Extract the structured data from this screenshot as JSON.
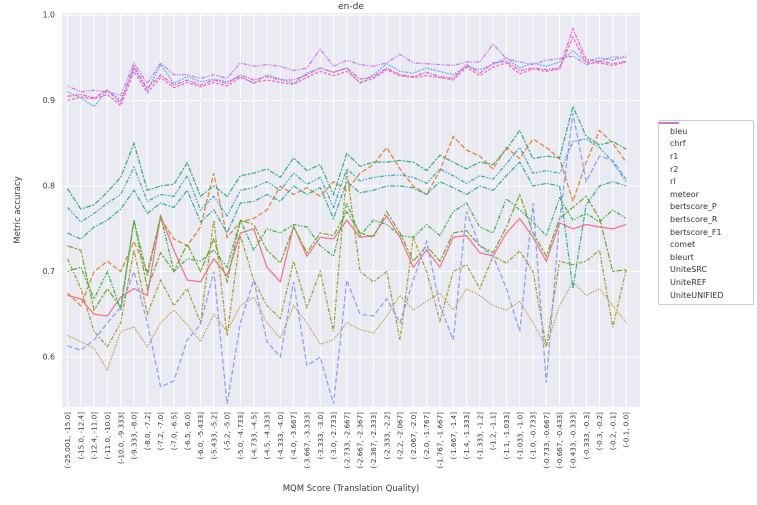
{
  "colors": {
    "figure_bg": "#ffffff",
    "plot_bg": "#eaeaf2",
    "grid": "#ffffff",
    "text": "#3a3a3a",
    "legend_border": "#cccccc"
  },
  "chart_data": {
    "type": "line",
    "title": "en-de",
    "xlabel": "MQM Score (Translation Quality)",
    "ylabel": "Metric accuracy",
    "ylim": [
      0.542,
      1.0
    ],
    "yticks": [
      0.6,
      0.7,
      0.8,
      0.9,
      1.0
    ],
    "grid": "on",
    "legend_position": "right",
    "categories": [
      "(-25.001, -15.0]",
      "(-15.0, -12.4]",
      "(-12.4, -11.0]",
      "(-11.0, -10.0]",
      "(-10.0, -9.333]",
      "(-9.333, -8.0]",
      "(-8.0, -7.2]",
      "(-7.2, -7.0]",
      "(-7.0, -6.5]",
      "(-6.5, -6.0]",
      "(-6.0, -5.433]",
      "(-5.433, -5.2]",
      "(-5.2, -5.0]",
      "(-5.0, -4.733]",
      "(-4.733, -4.5]",
      "(-4.5, -4.333]",
      "(-4.333, -4.0]",
      "(-4.0, -3.667]",
      "(-3.667, -3.333]",
      "(-3.333, -3.0]",
      "(-3.0, -2.733]",
      "(-2.733, -2.667]",
      "(-2.667, -2.367]",
      "(-2.367, -2.333]",
      "(-2.333, -2.2]",
      "(-2.2, -2.067]",
      "(-2.067, -2.0]",
      "(-2.0, -1.767]",
      "(-1.767, -1.667]",
      "(-1.667, -1.4]",
      "(-1.4, -1.333]",
      "(-1.333, -1.2]",
      "(-1.2, -1.1]",
      "(-1.1, -1.033]",
      "(-1.033, -1.0]",
      "(-1.0, -0.733]",
      "(-0.733, -0.667]",
      "(-0.667, -0.433]",
      "(-0.433, -0.333]",
      "(-0.333, -0.3]",
      "(-0.3, -0.2]",
      "(-0.2, -0.1]",
      "(-0.1, 0.0]"
    ],
    "series": [
      {
        "name": "bleu",
        "color": "#f77189",
        "dash": "",
        "values": [
          0.672,
          0.668,
          0.65,
          0.648,
          0.67,
          0.68,
          0.672,
          0.765,
          0.725,
          0.69,
          0.688,
          0.715,
          0.695,
          0.745,
          0.75,
          0.705,
          0.688,
          0.753,
          0.718,
          0.74,
          0.738,
          0.76,
          0.74,
          0.742,
          0.765,
          0.74,
          0.705,
          0.725,
          0.705,
          0.74,
          0.742,
          0.722,
          0.718,
          0.745,
          0.762,
          0.74,
          0.712,
          0.757,
          0.75,
          0.755,
          0.752,
          0.75,
          0.755
        ]
      },
      {
        "name": "chrf",
        "color": "#e68332",
        "dash": "5,2.2",
        "values": [
          0.675,
          0.66,
          0.7,
          0.712,
          0.7,
          0.735,
          0.7,
          0.762,
          0.738,
          0.73,
          0.752,
          0.815,
          0.74,
          0.758,
          0.762,
          0.772,
          0.8,
          0.79,
          0.798,
          0.788,
          0.805,
          0.795,
          0.815,
          0.825,
          0.845,
          0.82,
          0.8,
          0.79,
          0.818,
          0.858,
          0.842,
          0.835,
          0.82,
          0.845,
          0.832,
          0.855,
          0.845,
          0.832,
          0.782,
          0.828,
          0.865,
          0.85,
          0.828
        ]
      },
      {
        "name": "r1",
        "color": "#c39532",
        "dash": "1.2,1.4",
        "values": [
          0.625,
          0.618,
          0.61,
          0.585,
          0.63,
          0.635,
          0.612,
          0.64,
          0.655,
          0.638,
          0.618,
          0.65,
          0.63,
          0.66,
          0.67,
          0.64,
          0.622,
          0.66,
          0.64,
          0.615,
          0.62,
          0.64,
          0.632,
          0.628,
          0.648,
          0.672,
          0.655,
          0.665,
          0.675,
          0.655,
          0.68,
          0.672,
          0.66,
          0.655,
          0.665,
          0.64,
          0.612,
          0.66,
          0.688,
          0.672,
          0.68,
          0.66,
          0.64
        ]
      },
      {
        "name": "r2",
        "color": "#a59d31",
        "dash": "4,1.6,1.6,1.6",
        "values": [
          0.715,
          0.68,
          0.63,
          0.612,
          0.64,
          0.725,
          0.65,
          0.69,
          0.66,
          0.68,
          0.64,
          0.76,
          0.625,
          0.742,
          0.69,
          0.66,
          0.645,
          0.712,
          0.658,
          0.7,
          0.63,
          0.818,
          0.7,
          0.688,
          0.7,
          0.62,
          0.74,
          0.7,
          0.642,
          0.7,
          0.708,
          0.68,
          0.718,
          0.71,
          0.724,
          0.7,
          0.612,
          0.712,
          0.708,
          0.712,
          0.725,
          0.635,
          0.702
        ]
      },
      {
        "name": "rl",
        "color": "#7ca831",
        "dash": "6,1.6,2.5,1.6",
        "values": [
          0.73,
          0.725,
          0.655,
          0.68,
          0.658,
          0.76,
          0.68,
          0.722,
          0.7,
          0.732,
          0.7,
          0.738,
          0.688,
          0.76,
          0.755,
          0.725,
          0.71,
          0.752,
          0.722,
          0.745,
          0.742,
          0.77,
          0.745,
          0.74,
          0.77,
          0.745,
          0.712,
          0.73,
          0.712,
          0.745,
          0.748,
          0.73,
          0.722,
          0.752,
          0.79,
          0.745,
          0.718,
          0.762,
          0.775,
          0.788,
          0.762,
          0.7,
          0.702
        ]
      },
      {
        "name": "meteor",
        "color": "#3cb24a",
        "dash": "1.5,1.5,1.5,1.5,4,1.5",
        "values": [
          0.7,
          0.705,
          0.668,
          0.7,
          0.655,
          0.76,
          0.695,
          0.765,
          0.7,
          0.715,
          0.712,
          0.725,
          0.705,
          0.76,
          0.725,
          0.75,
          0.745,
          0.755,
          0.752,
          0.73,
          0.718,
          0.78,
          0.742,
          0.76,
          0.755,
          0.742,
          0.74,
          0.755,
          0.742,
          0.77,
          0.78,
          0.752,
          0.745,
          0.785,
          0.772,
          0.758,
          0.742,
          0.786,
          0.76,
          0.768,
          0.758,
          0.772,
          0.762
        ]
      },
      {
        "name": "bertscore_P",
        "color": "#33b07a",
        "dash": "5,1.5,2,1.5",
        "values": [
          0.797,
          0.773,
          0.778,
          0.793,
          0.81,
          0.85,
          0.795,
          0.8,
          0.802,
          0.827,
          0.788,
          0.8,
          0.788,
          0.812,
          0.815,
          0.82,
          0.81,
          0.833,
          0.818,
          0.825,
          0.79,
          0.838,
          0.823,
          0.828,
          0.828,
          0.83,
          0.828,
          0.818,
          0.836,
          0.828,
          0.82,
          0.828,
          0.825,
          0.843,
          0.865,
          0.832,
          0.835,
          0.833,
          0.893,
          0.858,
          0.848,
          0.852,
          0.843
        ]
      },
      {
        "name": "bertscore_R",
        "color": "#35ae9d",
        "dash": "5,1.5,1.5,1.5",
        "values": [
          0.745,
          0.738,
          0.752,
          0.76,
          0.773,
          0.795,
          0.768,
          0.78,
          0.775,
          0.795,
          0.758,
          0.772,
          0.745,
          0.78,
          0.782,
          0.79,
          0.782,
          0.8,
          0.79,
          0.798,
          0.762,
          0.805,
          0.792,
          0.795,
          0.8,
          0.8,
          0.798,
          0.79,
          0.805,
          0.798,
          0.79,
          0.8,
          0.795,
          0.812,
          0.828,
          0.8,
          0.803,
          0.8,
          0.68,
          0.778,
          0.8,
          0.805,
          0.8
        ]
      },
      {
        "name": "bertscore_F1",
        "color": "#38abb8",
        "dash": "4,1.5,1.5,1.5,1.5,1.5",
        "values": [
          0.775,
          0.758,
          0.768,
          0.78,
          0.79,
          0.822,
          0.782,
          0.79,
          0.788,
          0.812,
          0.772,
          0.788,
          0.765,
          0.795,
          0.798,
          0.805,
          0.795,
          0.815,
          0.802,
          0.81,
          0.775,
          0.82,
          0.806,
          0.81,
          0.812,
          0.813,
          0.81,
          0.803,
          0.82,
          0.812,
          0.803,
          0.812,
          0.808,
          0.826,
          0.845,
          0.815,
          0.818,
          0.815,
          0.852,
          0.855,
          0.845,
          0.828,
          0.805
        ]
      },
      {
        "name": "comet",
        "color": "#45a9e0",
        "dash": "1.5,1.3",
        "values": [
          0.91,
          0.903,
          0.893,
          0.912,
          0.9,
          0.938,
          0.912,
          0.942,
          0.92,
          0.928,
          0.922,
          0.925,
          0.922,
          0.928,
          0.92,
          0.93,
          0.925,
          0.92,
          0.932,
          0.938,
          0.933,
          0.938,
          0.92,
          0.93,
          0.943,
          0.934,
          0.932,
          0.938,
          0.934,
          0.93,
          0.94,
          0.936,
          0.942,
          0.95,
          0.938,
          0.944,
          0.94,
          0.945,
          0.958,
          0.945,
          0.95,
          0.947,
          0.952
        ]
      },
      {
        "name": "bleurt",
        "color": "#8f9df6",
        "dash": "5,2.5",
        "values": [
          0.613,
          0.608,
          0.62,
          0.64,
          0.658,
          0.7,
          0.64,
          0.565,
          0.572,
          0.62,
          0.638,
          0.7,
          0.545,
          0.64,
          0.69,
          0.618,
          0.6,
          0.688,
          0.59,
          0.6,
          0.545,
          0.69,
          0.65,
          0.648,
          0.668,
          0.64,
          0.69,
          0.735,
          0.66,
          0.62,
          0.77,
          0.73,
          0.718,
          0.68,
          0.63,
          0.78,
          0.57,
          0.76,
          0.885,
          0.805,
          0.835,
          0.83,
          0.808
        ]
      },
      {
        "name": "UniteSRC",
        "color": "#cb79f4",
        "dash": "1.2,1.2,1.2,1.2,4,1.2",
        "values": [
          0.917,
          0.91,
          0.912,
          0.91,
          0.906,
          0.944,
          0.92,
          0.944,
          0.93,
          0.93,
          0.926,
          0.93,
          0.926,
          0.944,
          0.94,
          0.942,
          0.94,
          0.935,
          0.938,
          0.96,
          0.94,
          0.947,
          0.942,
          0.94,
          0.944,
          0.954,
          0.944,
          0.943,
          0.942,
          0.941,
          0.945,
          0.945,
          0.966,
          0.949,
          0.945,
          0.942,
          0.947,
          0.949,
          0.952,
          0.942,
          0.946,
          0.951,
          0.95
        ]
      },
      {
        "name": "UniteREF",
        "color": "#f05ddc",
        "dash": "4,1.3,1.3,1.3",
        "values": [
          0.905,
          0.907,
          0.903,
          0.912,
          0.897,
          0.94,
          0.914,
          0.93,
          0.918,
          0.924,
          0.918,
          0.924,
          0.92,
          0.93,
          0.924,
          0.928,
          0.924,
          0.924,
          0.93,
          0.938,
          0.933,
          0.938,
          0.925,
          0.928,
          0.938,
          0.93,
          0.928,
          0.933,
          0.928,
          0.926,
          0.942,
          0.932,
          0.944,
          0.946,
          0.935,
          0.938,
          0.936,
          0.938,
          0.984,
          0.948,
          0.946,
          0.943,
          0.946
        ]
      },
      {
        "name": "UniteUNIFIED",
        "color": "#f669b6",
        "dash": "3,1.6",
        "values": [
          0.9,
          0.904,
          0.902,
          0.907,
          0.894,
          0.934,
          0.909,
          0.927,
          0.915,
          0.921,
          0.916,
          0.921,
          0.917,
          0.927,
          0.921,
          0.924,
          0.921,
          0.919,
          0.927,
          0.934,
          0.929,
          0.934,
          0.921,
          0.926,
          0.936,
          0.929,
          0.927,
          0.929,
          0.927,
          0.924,
          0.939,
          0.929,
          0.939,
          0.944,
          0.931,
          0.937,
          0.934,
          0.937,
          0.974,
          0.944,
          0.944,
          0.941,
          0.945
        ]
      }
    ]
  }
}
